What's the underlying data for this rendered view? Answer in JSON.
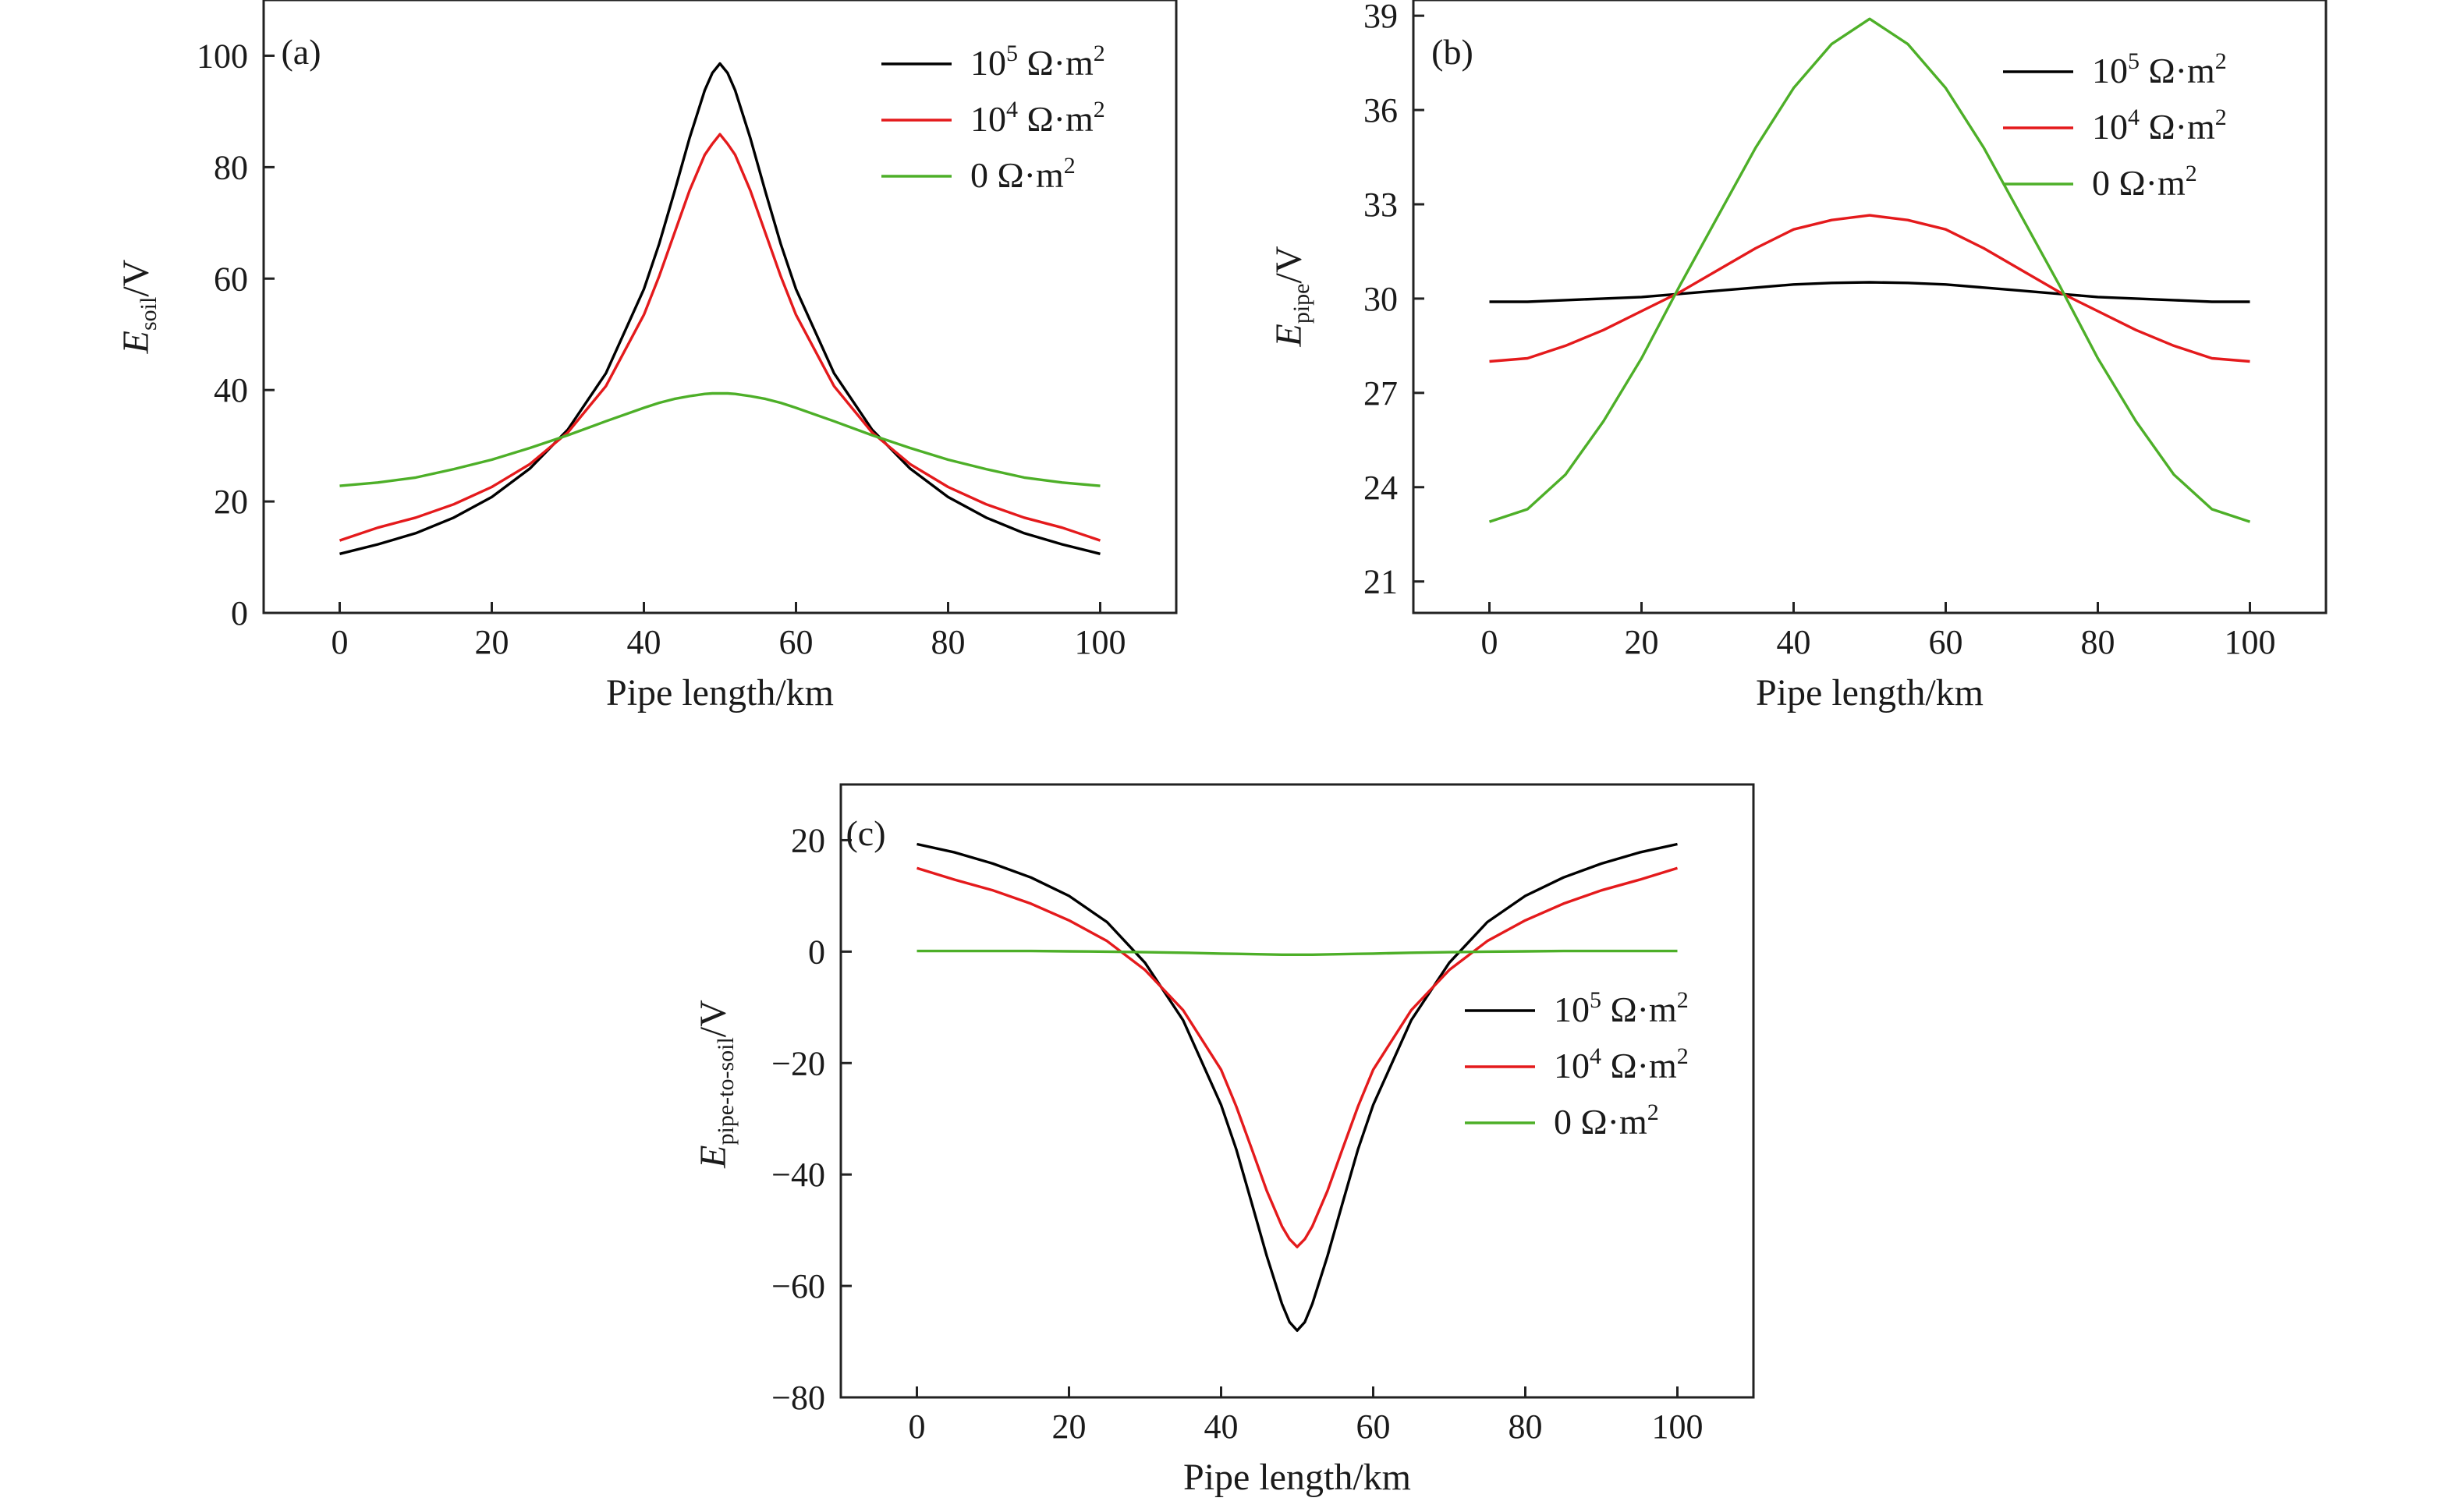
{
  "chart_data": [
    {
      "panel": "(a)",
      "type": "line",
      "xlabel": "Pipe length/km",
      "ylabel": {
        "main": "E",
        "sub": "soil",
        "unit": "/V"
      },
      "xlim": [
        -10,
        110
      ],
      "ylim": [
        0,
        110
      ],
      "xticks": [
        "0",
        "20",
        "40",
        "60",
        "80",
        "100"
      ],
      "yticks": [
        "0",
        "20",
        "40",
        "60",
        "80",
        "100"
      ],
      "legend_position": "top-right",
      "x": [
        0,
        5,
        10,
        15,
        20,
        25,
        30,
        35,
        40,
        42,
        44,
        46,
        48,
        49,
        50,
        51,
        52,
        54,
        56,
        58,
        60,
        65,
        70,
        75,
        80,
        85,
        90,
        95,
        100
      ],
      "series": [
        {
          "name": {
            "base": "10",
            "exp": "5",
            "unit": " Ω·m",
            "unit_exp": "2"
          },
          "color": "#000000",
          "values": [
            10.6,
            12.3,
            14.3,
            17.1,
            20.8,
            25.9,
            32.9,
            43.0,
            58.1,
            66.2,
            75.5,
            85.2,
            93.8,
            96.9,
            98.6,
            96.9,
            93.8,
            85.2,
            75.5,
            66.2,
            58.1,
            43.0,
            32.9,
            25.9,
            20.8,
            17.1,
            14.3,
            12.3,
            10.6
          ]
        },
        {
          "name": {
            "base": "10",
            "exp": "4",
            "unit": " Ω·m",
            "unit_exp": "2"
          },
          "color": "#e41a1c",
          "values": [
            13.0,
            15.3,
            17.1,
            19.5,
            22.6,
            26.7,
            32.4,
            40.7,
            53.5,
            60.4,
            68.1,
            75.8,
            82.2,
            84.2,
            85.9,
            84.2,
            82.2,
            75.8,
            68.1,
            60.4,
            53.5,
            40.7,
            32.4,
            26.7,
            22.6,
            19.5,
            17.1,
            15.3,
            13.0
          ]
        },
        {
          "name": {
            "base": "0",
            "exp": "",
            "unit": " Ω·m",
            "unit_exp": "2"
          },
          "color": "#4daf28",
          "values": [
            22.8,
            23.4,
            24.3,
            25.8,
            27.5,
            29.6,
            31.9,
            34.4,
            36.8,
            37.7,
            38.4,
            38.9,
            39.3,
            39.4,
            39.4,
            39.4,
            39.3,
            38.9,
            38.4,
            37.7,
            36.8,
            34.4,
            31.9,
            29.6,
            27.5,
            25.8,
            24.3,
            23.4,
            22.8
          ]
        }
      ]
    },
    {
      "panel": "(b)",
      "type": "line",
      "xlabel": "Pipe length/km",
      "ylabel": {
        "main": "E",
        "sub": "pipe",
        "unit": "/V"
      },
      "xlim": [
        -10,
        110
      ],
      "ylim": [
        20,
        39.5
      ],
      "xticks": [
        "0",
        "20",
        "40",
        "60",
        "80",
        "100"
      ],
      "yticks": [
        "21",
        "24",
        "27",
        "30",
        "33",
        "36",
        "39"
      ],
      "legend_position": "top-right",
      "x": [
        0,
        5,
        10,
        15,
        20,
        25,
        30,
        35,
        40,
        45,
        50,
        55,
        60,
        65,
        70,
        75,
        80,
        85,
        90,
        95,
        100
      ],
      "series": [
        {
          "name": {
            "base": "10",
            "exp": "5",
            "unit": " Ω·m",
            "unit_exp": "2"
          },
          "color": "#000000",
          "values": [
            29.9,
            29.9,
            29.95,
            30.0,
            30.05,
            30.15,
            30.25,
            30.35,
            30.45,
            30.5,
            30.52,
            30.5,
            30.45,
            30.35,
            30.25,
            30.15,
            30.05,
            30.0,
            29.95,
            29.9,
            29.9
          ]
        },
        {
          "name": {
            "base": "10",
            "exp": "4",
            "unit": " Ω·m",
            "unit_exp": "2"
          },
          "color": "#e41a1c",
          "values": [
            28.0,
            28.1,
            28.5,
            29.0,
            29.6,
            30.2,
            30.9,
            31.6,
            32.2,
            32.5,
            32.65,
            32.5,
            32.2,
            31.6,
            30.9,
            30.2,
            29.6,
            29.0,
            28.5,
            28.1,
            28.0
          ]
        },
        {
          "name": {
            "base": "0",
            "exp": "",
            "unit": " Ω·m",
            "unit_exp": "2"
          },
          "color": "#4daf28",
          "values": [
            22.9,
            23.3,
            24.4,
            26.1,
            28.1,
            30.4,
            32.6,
            34.8,
            36.7,
            38.1,
            38.9,
            38.1,
            36.7,
            34.8,
            32.6,
            30.4,
            28.1,
            26.1,
            24.4,
            23.3,
            22.9
          ]
        }
      ]
    },
    {
      "panel": "(c)",
      "type": "line",
      "xlabel": "Pipe length/km",
      "ylabel": {
        "main": "E",
        "sub": "pipe-to-soil",
        "unit": "/V"
      },
      "xlim": [
        -10,
        110
      ],
      "ylim": [
        -80,
        30
      ],
      "xticks": [
        "0",
        "20",
        "40",
        "60",
        "80",
        "100"
      ],
      "yticks": [
        "−80",
        "−60",
        "−40",
        "−20",
        "0",
        "20"
      ],
      "legend_position": "center-right",
      "x": [
        0,
        5,
        10,
        15,
        20,
        25,
        30,
        35,
        40,
        42,
        44,
        46,
        48,
        49,
        50,
        51,
        52,
        54,
        56,
        58,
        60,
        65,
        70,
        75,
        80,
        85,
        90,
        95,
        100
      ],
      "series": [
        {
          "name": {
            "base": "10",
            "exp": "5",
            "unit": " Ω·m",
            "unit_exp": "2"
          },
          "color": "#000000",
          "values": [
            19.3,
            17.8,
            15.8,
            13.3,
            10.0,
            5.3,
            -2.0,
            -12.3,
            -27.5,
            -35.5,
            -45.0,
            -54.6,
            -63.2,
            -66.5,
            -68.0,
            -66.5,
            -63.2,
            -54.6,
            -45.0,
            -35.5,
            -27.5,
            -12.3,
            -2.0,
            5.3,
            10.0,
            13.3,
            15.8,
            17.8,
            19.3
          ]
        },
        {
          "name": {
            "base": "10",
            "exp": "4",
            "unit": " Ω·m",
            "unit_exp": "2"
          },
          "color": "#e41a1c",
          "values": [
            15.0,
            12.9,
            11.0,
            8.6,
            5.6,
            1.9,
            -3.3,
            -10.5,
            -21.2,
            -27.8,
            -35.3,
            -42.9,
            -49.3,
            -51.6,
            -53.0,
            -51.6,
            -49.3,
            -42.9,
            -35.3,
            -27.8,
            -21.2,
            -10.5,
            -3.3,
            1.9,
            5.6,
            8.6,
            11.0,
            12.9,
            15.0
          ]
        },
        {
          "name": {
            "base": "0",
            "exp": "",
            "unit": " Ω·m",
            "unit_exp": "2"
          },
          "color": "#4daf28",
          "values": [
            0.1,
            0.1,
            0.1,
            0.1,
            0.05,
            0.0,
            -0.1,
            -0.2,
            -0.35,
            -0.4,
            -0.45,
            -0.5,
            -0.55,
            -0.55,
            -0.55,
            -0.55,
            -0.55,
            -0.5,
            -0.45,
            -0.4,
            -0.35,
            -0.2,
            -0.1,
            0.0,
            0.05,
            0.1,
            0.1,
            0.1,
            0.1
          ]
        }
      ]
    }
  ]
}
